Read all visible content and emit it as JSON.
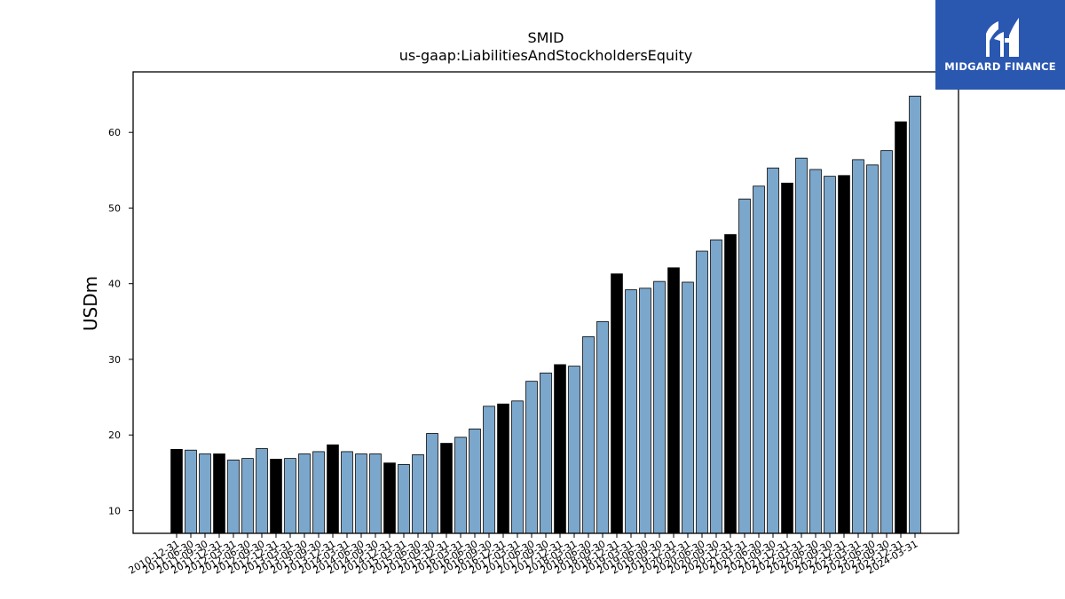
{
  "chart_data": {
    "type": "bar",
    "title": "SMID",
    "subtitle": "us-gaap:LiabilitiesAndStockholdersEquity",
    "xlabel": "",
    "ylabel": "USDm",
    "ylim": [
      7,
      68
    ],
    "yticks": [
      10,
      20,
      30,
      40,
      50,
      60
    ],
    "grid": false,
    "colors": {
      "quarterly": "#7ba7cc",
      "annual": "#000000",
      "edge": "#000000"
    },
    "categories": [
      "2010-12-31",
      "2011-06-30",
      "2011-09-30",
      "2011-12-31",
      "2012-03-31",
      "2012-06-30",
      "2012-09-30",
      "2012-12-31",
      "2013-03-31",
      "2013-06-30",
      "2013-09-30",
      "2013-12-31",
      "2014-03-31",
      "2014-06-30",
      "2014-09-30",
      "2014-12-31",
      "2015-03-31",
      "2015-06-30",
      "2015-09-30",
      "2015-12-31",
      "2016-03-31",
      "2016-06-30",
      "2016-09-30",
      "2016-12-31",
      "2017-03-31",
      "2017-06-30",
      "2017-09-30",
      "2017-12-31",
      "2018-03-31",
      "2018-06-30",
      "2018-09-30",
      "2018-12-31",
      "2019-03-31",
      "2019-06-30",
      "2019-09-30",
      "2019-12-31",
      "2020-03-31",
      "2020-06-30",
      "2020-09-30",
      "2020-12-31",
      "2021-03-31",
      "2021-06-30",
      "2021-09-30",
      "2021-12-31",
      "2022-03-31",
      "2022-06-30",
      "2022-09-30",
      "2022-12-31",
      "2023-03-31",
      "2023-06-30",
      "2023-09-30",
      "2023-12-31",
      "2024-03-31"
    ],
    "values": [
      18.1,
      18.0,
      17.5,
      17.5,
      16.7,
      16.9,
      18.2,
      16.8,
      16.9,
      17.5,
      17.8,
      18.7,
      17.8,
      17.5,
      17.5,
      16.3,
      16.1,
      17.4,
      20.2,
      18.9,
      19.7,
      20.8,
      23.8,
      24.1,
      24.5,
      27.1,
      28.2,
      29.3,
      29.1,
      33.0,
      35.0,
      41.3,
      39.2,
      39.4,
      40.3,
      42.1,
      40.2,
      44.3,
      45.8,
      46.5,
      51.2,
      52.9,
      55.3,
      53.3,
      56.6,
      55.1,
      54.2,
      54.3,
      56.4,
      55.7,
      57.6,
      61.4,
      64.8
    ],
    "annual_flags": [
      true,
      false,
      false,
      true,
      false,
      false,
      false,
      true,
      false,
      false,
      false,
      true,
      false,
      false,
      false,
      true,
      false,
      false,
      false,
      true,
      false,
      false,
      false,
      true,
      false,
      false,
      false,
      true,
      false,
      false,
      false,
      true,
      false,
      false,
      false,
      true,
      false,
      false,
      false,
      true,
      false,
      false,
      false,
      true,
      false,
      false,
      false,
      true,
      false,
      false,
      false,
      true,
      false
    ]
  },
  "logo": {
    "text": "MIDGARD FINANCE",
    "color": "#2a57b0"
  }
}
